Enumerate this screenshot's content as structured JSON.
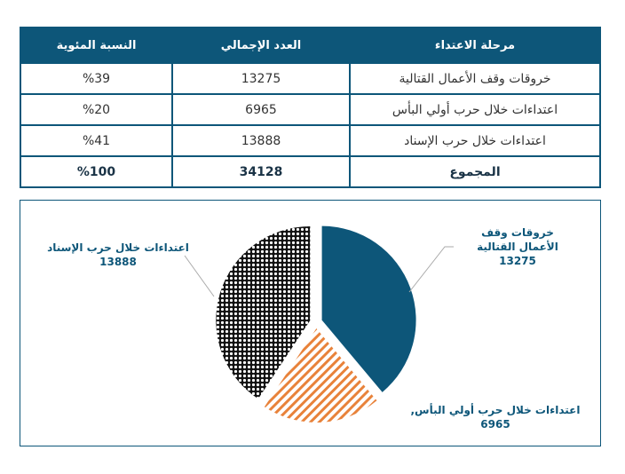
{
  "table": {
    "headers": [
      "مرحلة الاعتداء",
      "العدد الإجمالي",
      "النسبة المئوية"
    ],
    "rows": [
      [
        "خروقات وقف الأعمال القتالية",
        "13275",
        "%39"
      ],
      [
        "اعتداءات خلال حرب أولي البأس",
        "6965",
        "%20"
      ],
      [
        "اعتداءات خلال حرب الإسناد",
        "13888",
        "%41"
      ]
    ],
    "total": [
      "المجموع",
      "34128",
      "%100"
    ]
  },
  "chart_data": {
    "type": "pie",
    "categories": [
      "خروقات وقف الأعمال القتالية",
      "اعتداءات خلال حرب أولي البأس",
      "اعتداءات خلال حرب الإسناد"
    ],
    "values": [
      13275,
      6965,
      13888
    ],
    "labels": [
      {
        "name": "خروقات وقف الأعمال القتالية",
        "value": "13275"
      },
      {
        "name": "اعتداءات خلال حرب أولي البأس,",
        "value": "6965"
      },
      {
        "name": "اعتداءات خلال حرب الإسناد",
        "value": "13888"
      }
    ],
    "colors": [
      "#0d5679",
      "#e8823a",
      "#111111"
    ]
  }
}
